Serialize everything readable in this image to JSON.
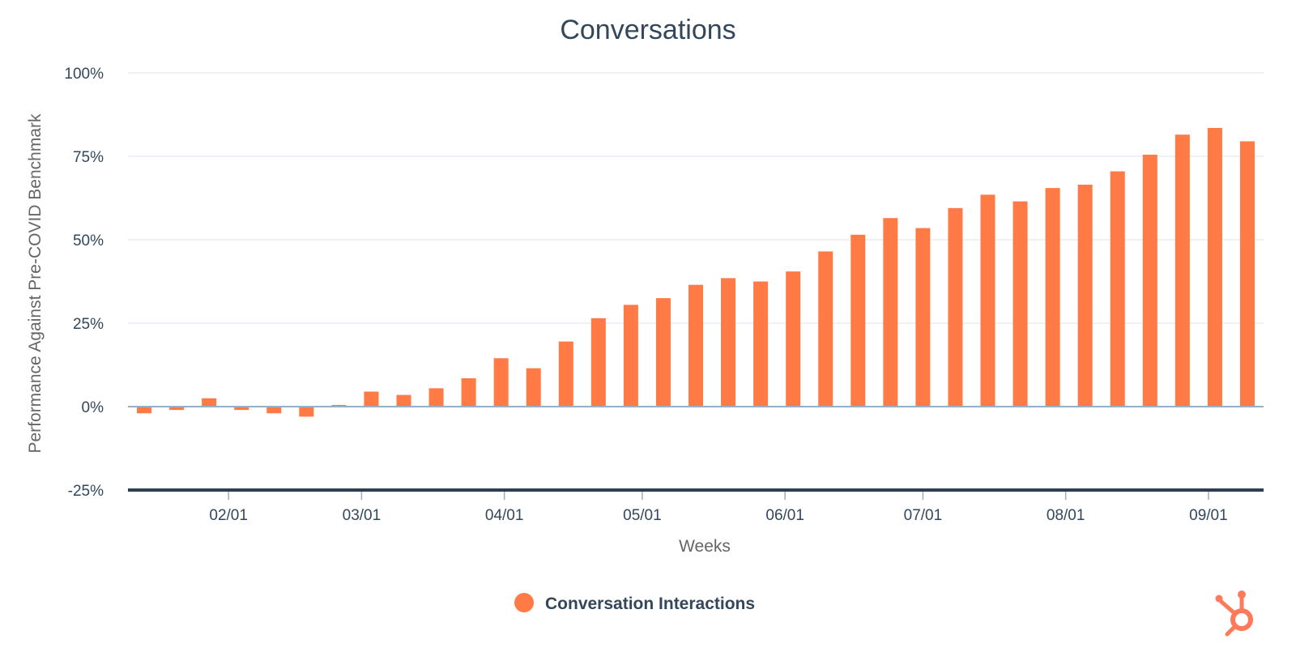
{
  "colors": {
    "bar": "#ff7a45",
    "text": "#33475b",
    "axis_title": "#666666",
    "grid": "#dfe3eb",
    "baseline": "#2d3e50",
    "zero_line": "#99afc4",
    "brand": "#ff7a59"
  },
  "logo": {
    "icon": "hubspot-sprocket-icon"
  },
  "chart_data": {
    "type": "bar",
    "title": "Conversations",
    "xlabel": "Weeks",
    "ylabel": "Performance Against Pre-COVID Benchmark",
    "ylim": [
      -25,
      100
    ],
    "yticks": [
      100,
      75,
      50,
      25,
      0,
      -25
    ],
    "ytick_labels": [
      "100%",
      "75%",
      "50%",
      "25%",
      "0%",
      "-25%"
    ],
    "grid": true,
    "legend_position": "bottom-center",
    "x": [
      "01/13",
      "01/20",
      "01/27",
      "02/03",
      "02/10",
      "02/17",
      "02/24",
      "03/02",
      "03/09",
      "03/16",
      "03/23",
      "03/30",
      "04/06",
      "04/13",
      "04/20",
      "04/27",
      "05/04",
      "05/11",
      "05/18",
      "05/25",
      "06/01",
      "06/08",
      "06/15",
      "06/22",
      "06/29",
      "07/06",
      "07/13",
      "07/20",
      "07/27",
      "08/03",
      "08/10",
      "08/17",
      "08/24",
      "08/31",
      "09/07"
    ],
    "xtick_labels": [
      {
        "label": "02/01",
        "at": 2.6
      },
      {
        "label": "03/01",
        "at": 6.7
      },
      {
        "label": "04/01",
        "at": 11.1
      },
      {
        "label": "05/01",
        "at": 15.35
      },
      {
        "label": "06/01",
        "at": 19.75
      },
      {
        "label": "07/01",
        "at": 24.0
      },
      {
        "label": "08/01",
        "at": 28.4
      },
      {
        "label": "09/01",
        "at": 32.8
      }
    ],
    "series": [
      {
        "name": "Conversation Interactions",
        "values": [
          -2,
          -1,
          2.5,
          -1,
          -2,
          -3,
          0.5,
          4.5,
          3.5,
          5.5,
          8.5,
          14.5,
          11.5,
          19.5,
          26.5,
          30.5,
          32.5,
          36.5,
          38.5,
          37.5,
          40.5,
          46.5,
          51.5,
          56.5,
          53.5,
          59.5,
          63.5,
          61.5,
          65.5,
          66.5,
          70.5,
          75.5,
          81.5,
          83.5,
          79.5
        ]
      }
    ]
  }
}
